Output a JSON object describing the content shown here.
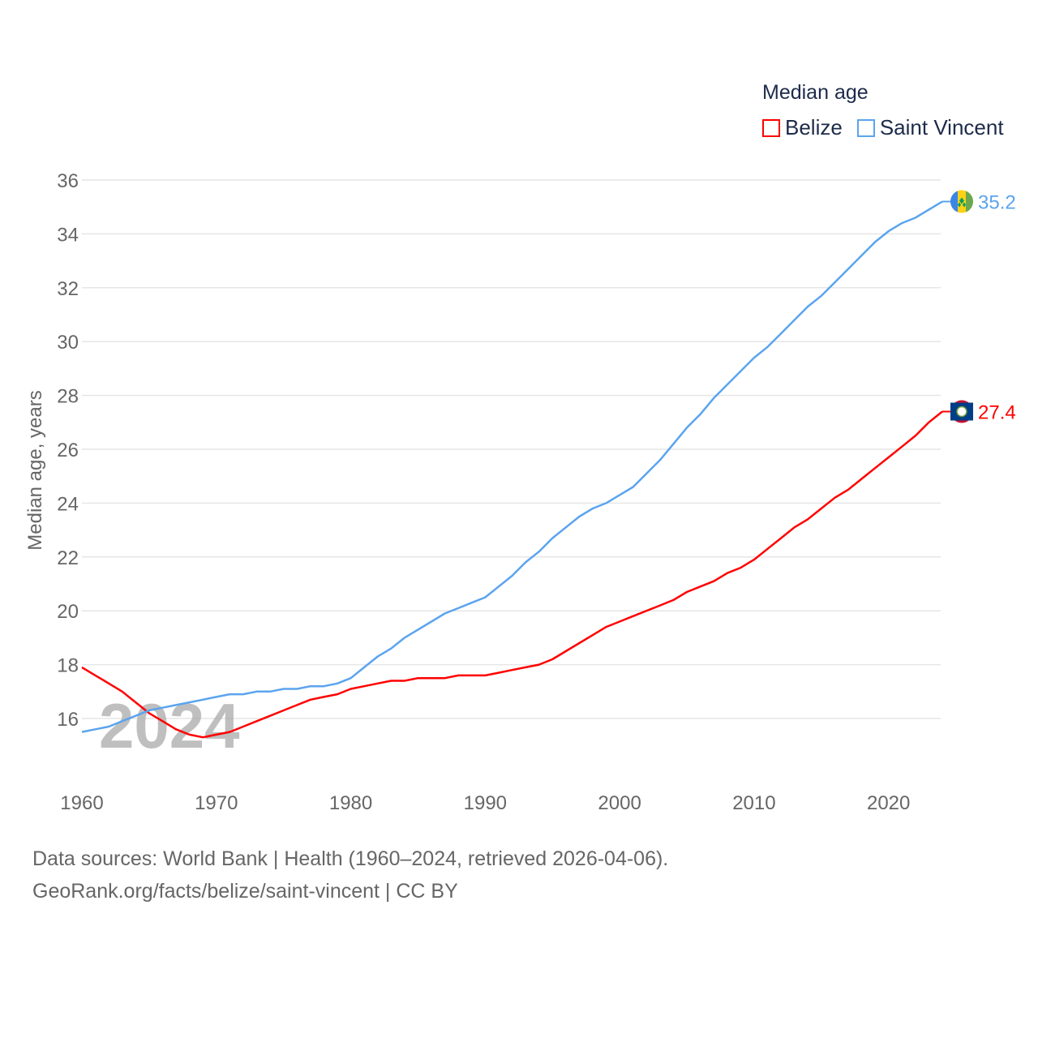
{
  "chart_data": {
    "type": "line",
    "title": "Median age",
    "ylabel": "Median age, years",
    "xlabel": "",
    "xlim": [
      1960,
      2024
    ],
    "ylim": [
      15,
      36
    ],
    "yticks": [
      "16",
      "18",
      "20",
      "22",
      "24",
      "26",
      "28",
      "30",
      "32",
      "34",
      "36"
    ],
    "xticks": [
      "1960",
      "1970",
      "1980",
      "1990",
      "2000",
      "2010",
      "2020"
    ],
    "year_watermark": "2024",
    "grid": true,
    "legend_position": "top-right",
    "x": [
      1960,
      1961,
      1962,
      1963,
      1964,
      1965,
      1966,
      1967,
      1968,
      1969,
      1970,
      1971,
      1972,
      1973,
      1974,
      1975,
      1976,
      1977,
      1978,
      1979,
      1980,
      1981,
      1982,
      1983,
      1984,
      1985,
      1986,
      1987,
      1988,
      1989,
      1990,
      1991,
      1992,
      1993,
      1994,
      1995,
      1996,
      1997,
      1998,
      1999,
      2000,
      2001,
      2002,
      2003,
      2004,
      2005,
      2006,
      2007,
      2008,
      2009,
      2010,
      2011,
      2012,
      2013,
      2014,
      2015,
      2016,
      2017,
      2018,
      2019,
      2020,
      2021,
      2022,
      2023,
      2024
    ],
    "series": [
      {
        "name": "Belize",
        "color": "#ff0000",
        "end_label": "27.4",
        "values": [
          17.9,
          17.6,
          17.3,
          17.0,
          16.6,
          16.2,
          15.9,
          15.6,
          15.4,
          15.3,
          15.4,
          15.5,
          15.7,
          15.9,
          16.1,
          16.3,
          16.5,
          16.7,
          16.8,
          16.9,
          17.1,
          17.2,
          17.3,
          17.4,
          17.4,
          17.5,
          17.5,
          17.5,
          17.6,
          17.6,
          17.6,
          17.7,
          17.8,
          17.9,
          18.0,
          18.2,
          18.5,
          18.8,
          19.1,
          19.4,
          19.6,
          19.8,
          20.0,
          20.2,
          20.4,
          20.7,
          20.9,
          21.1,
          21.4,
          21.6,
          21.9,
          22.3,
          22.7,
          23.1,
          23.4,
          23.8,
          24.2,
          24.5,
          24.9,
          25.3,
          25.7,
          26.1,
          26.5,
          27.0,
          27.4
        ]
      },
      {
        "name": "Saint Vincent",
        "color": "#5ba4ee",
        "end_label": "35.2",
        "values": [
          15.5,
          15.6,
          15.7,
          15.9,
          16.1,
          16.3,
          16.4,
          16.5,
          16.6,
          16.7,
          16.8,
          16.9,
          16.9,
          17.0,
          17.0,
          17.1,
          17.1,
          17.2,
          17.2,
          17.3,
          17.5,
          17.9,
          18.3,
          18.6,
          19.0,
          19.3,
          19.6,
          19.9,
          20.1,
          20.3,
          20.5,
          20.9,
          21.3,
          21.8,
          22.2,
          22.7,
          23.1,
          23.5,
          23.8,
          24.0,
          24.3,
          24.6,
          25.1,
          25.6,
          26.2,
          26.8,
          27.3,
          27.9,
          28.4,
          28.9,
          29.4,
          29.8,
          30.3,
          30.8,
          31.3,
          31.7,
          32.2,
          32.7,
          33.2,
          33.7,
          34.1,
          34.4,
          34.6,
          34.9,
          35.2
        ]
      }
    ]
  },
  "footer": {
    "source": "Data sources: World Bank | Health (1960–2024, retrieved 2026-04-06).",
    "link": "GeoRank.org/facts/belize/saint-vincent | CC BY"
  }
}
